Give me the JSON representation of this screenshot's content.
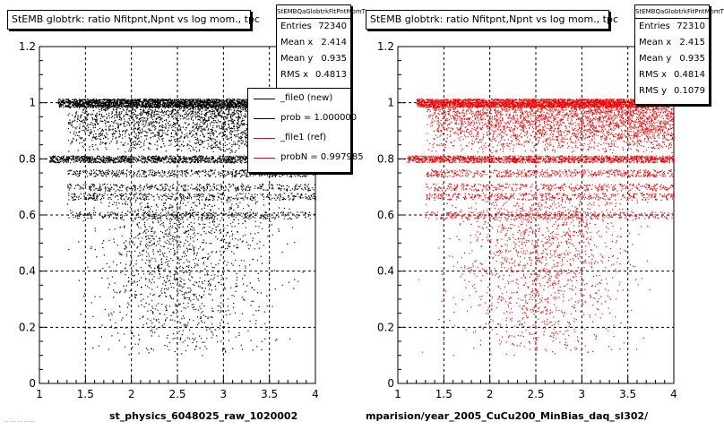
{
  "chart_data": [
    {
      "type": "scatter",
      "title": "StEMB globtrk: ratio Nfitpnt,Npnt vs log mom., tpc",
      "xlabel": "st_physics_6048025_raw_1020002",
      "ylabel": "",
      "xlim": [
        1,
        4
      ],
      "ylim": [
        0,
        1.2
      ],
      "x_ticks": [
        "1",
        "1.5",
        "2",
        "2.5",
        "3",
        "3.5",
        "4"
      ],
      "y_ticks": [
        "0",
        "0.2",
        "0.4",
        "0.6",
        "0.8",
        "1",
        "1.2"
      ],
      "grid": true,
      "marker_color": "#000000",
      "bands": [
        1.0,
        0.8,
        0.75,
        0.7,
        0.667,
        0.6
      ],
      "stats": {
        "name": "StEMBQaGlobtrkFitPntMomT",
        "entries_label": "Entries",
        "entries": "72340",
        "meanx_label": "Mean x",
        "meanx": "2.414",
        "meany_label": "Mean y",
        "meany": "0.935",
        "rmsx_label": "RMS x",
        "rmsx": "0.4813"
      },
      "legend": {
        "placement": "top-right",
        "entries": [
          {
            "label": "_file0 (new)",
            "color": "#000000"
          },
          {
            "label": "prob = 1.000000",
            "color": "#000000"
          },
          {
            "label": "_file1 (ref)",
            "color": "#ff0000"
          },
          {
            "label": "probN = 0.997985",
            "color": "#ff0000"
          }
        ]
      }
    },
    {
      "type": "scatter",
      "title": "StEMB globtrk: ratio Nfitpnt,Npnt vs log mom., tpc",
      "xlabel": "mparision/year_2005_CuCu200_MinBias_daq_sl302/",
      "ylabel": "",
      "xlim": [
        1,
        4
      ],
      "ylim": [
        0,
        1.2
      ],
      "x_ticks": [
        "1",
        "1.5",
        "2",
        "2.5",
        "3",
        "3.5",
        "4"
      ],
      "y_ticks": [
        "0",
        "0.2",
        "0.4",
        "0.6",
        "0.8",
        "1",
        "1.2"
      ],
      "grid": true,
      "marker_color": "#ff0000",
      "bands": [
        1.0,
        0.8,
        0.75,
        0.7,
        0.667,
        0.6
      ],
      "stats": {
        "name": "StEMBQaGlobtrkFitPntMomT",
        "entries_label": "Entries",
        "entries": "72310",
        "meanx_label": "Mean x",
        "meanx": "2.415",
        "meany_label": "Mean y",
        "meany": "0.935",
        "rmsx_label": "RMS x",
        "rmsx": "0.4814",
        "rmsy_label": "RMS y",
        "rmsy": "0.1079"
      }
    }
  ],
  "footer": "... ... ... . ...."
}
